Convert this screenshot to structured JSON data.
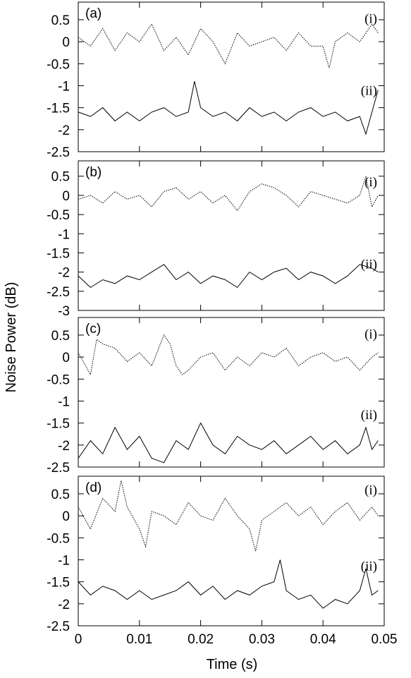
{
  "chart_data": {
    "type": "line",
    "xlabel": "Time (s)",
    "ylabel": "Noise Power (dB)",
    "xlim": [
      0,
      0.05
    ],
    "x_ticks": [
      "0",
      "0.01",
      "0.02",
      "0.03",
      "0.04",
      "0.05"
    ],
    "x_tick_values": [
      0,
      0.01,
      0.02,
      0.03,
      0.04,
      0.05
    ],
    "grid": false,
    "line_styles": {
      "(i)": "dotted",
      "(ii)": "solid"
    },
    "trace_color": "#000000",
    "panels": [
      {
        "label": "(a)",
        "ylim": [
          -2.5,
          0.9
        ],
        "y_ticks": [
          "0.5",
          "0",
          "-0.5",
          "-1",
          "-1.5",
          "-2",
          "-2.5"
        ],
        "y_tick_values": [
          0.5,
          0,
          -0.5,
          -1,
          -1.5,
          -2,
          -2.5
        ],
        "series": [
          {
            "name": "(i)",
            "style": "dotted",
            "x": [
              0,
              0.002,
              0.004,
              0.006,
              0.008,
              0.01,
              0.012,
              0.014,
              0.016,
              0.018,
              0.02,
              0.022,
              0.024,
              0.026,
              0.028,
              0.03,
              0.032,
              0.034,
              0.036,
              0.038,
              0.04,
              0.041,
              0.042,
              0.044,
              0.046,
              0.048,
              0.049
            ],
            "y": [
              0.1,
              -0.1,
              0.3,
              -0.2,
              0.2,
              0.0,
              0.4,
              -0.2,
              0.1,
              -0.3,
              0.3,
              0.0,
              -0.5,
              0.2,
              -0.1,
              0.0,
              0.1,
              -0.2,
              0.2,
              -0.1,
              -0.1,
              -0.6,
              0.0,
              0.2,
              0.0,
              0.4,
              0.2
            ]
          },
          {
            "name": "(ii)",
            "style": "solid",
            "x": [
              0,
              0.002,
              0.004,
              0.006,
              0.008,
              0.01,
              0.012,
              0.014,
              0.016,
              0.018,
              0.019,
              0.02,
              0.022,
              0.024,
              0.026,
              0.028,
              0.03,
              0.032,
              0.034,
              0.036,
              0.038,
              0.04,
              0.042,
              0.044,
              0.046,
              0.047,
              0.048,
              0.049
            ],
            "y": [
              -1.6,
              -1.7,
              -1.5,
              -1.8,
              -1.6,
              -1.8,
              -1.6,
              -1.5,
              -1.7,
              -1.6,
              -0.9,
              -1.5,
              -1.7,
              -1.6,
              -1.8,
              -1.5,
              -1.7,
              -1.6,
              -1.8,
              -1.6,
              -1.5,
              -1.7,
              -1.6,
              -1.8,
              -1.7,
              -2.1,
              -1.6,
              -1.1
            ]
          }
        ]
      },
      {
        "label": "(b)",
        "ylim": [
          -3,
          0.9
        ],
        "y_ticks": [
          "0.5",
          "0",
          "-0.5",
          "-1",
          "-1.5",
          "-2",
          "-2.5",
          "-3"
        ],
        "y_tick_values": [
          0.5,
          0,
          -0.5,
          -1,
          -1.5,
          -2,
          -2.5,
          -3
        ],
        "series": [
          {
            "name": "(i)",
            "style": "dotted",
            "x": [
              0,
              0.002,
              0.004,
              0.006,
              0.008,
              0.01,
              0.012,
              0.014,
              0.016,
              0.018,
              0.02,
              0.022,
              0.024,
              0.026,
              0.028,
              0.03,
              0.032,
              0.034,
              0.036,
              0.038,
              0.04,
              0.042,
              0.044,
              0.046,
              0.047,
              0.048,
              0.049
            ],
            "y": [
              -0.1,
              0.0,
              -0.2,
              0.1,
              -0.1,
              0.0,
              -0.3,
              0.1,
              0.2,
              -0.1,
              0.1,
              -0.2,
              0.0,
              -0.4,
              0.1,
              0.3,
              0.2,
              0.0,
              -0.3,
              0.1,
              0.0,
              -0.1,
              -0.2,
              0.0,
              0.5,
              -0.3,
              0.0
            ]
          },
          {
            "name": "(ii)",
            "style": "solid",
            "x": [
              0,
              0.002,
              0.004,
              0.006,
              0.008,
              0.01,
              0.012,
              0.014,
              0.016,
              0.018,
              0.02,
              0.022,
              0.024,
              0.026,
              0.028,
              0.03,
              0.032,
              0.034,
              0.036,
              0.038,
              0.04,
              0.042,
              0.044,
              0.046,
              0.048,
              0.049
            ],
            "y": [
              -2.1,
              -2.4,
              -2.2,
              -2.3,
              -2.1,
              -2.2,
              -2.0,
              -1.8,
              -2.2,
              -2.0,
              -2.3,
              -2.1,
              -2.2,
              -2.4,
              -2.0,
              -2.2,
              -2.0,
              -1.9,
              -2.2,
              -2.0,
              -2.1,
              -2.3,
              -2.1,
              -1.8,
              -1.9,
              -2.0
            ]
          }
        ]
      },
      {
        "label": "(c)",
        "ylim": [
          -2.5,
          0.9
        ],
        "y_ticks": [
          "0.5",
          "0",
          "-0.5",
          "-1",
          "-1.5",
          "-2",
          "-2.5"
        ],
        "y_tick_values": [
          0.5,
          0,
          -0.5,
          -1,
          -1.5,
          -2,
          -2.5
        ],
        "series": [
          {
            "name": "(i)",
            "style": "dotted",
            "x": [
              0,
              0.002,
              0.003,
              0.004,
              0.006,
              0.008,
              0.01,
              0.012,
              0.014,
              0.015,
              0.016,
              0.017,
              0.018,
              0.02,
              0.022,
              0.024,
              0.026,
              0.028,
              0.03,
              0.032,
              0.034,
              0.036,
              0.038,
              0.04,
              0.042,
              0.044,
              0.046,
              0.048,
              0.049
            ],
            "y": [
              0.1,
              -0.4,
              0.4,
              0.3,
              0.2,
              -0.1,
              0.1,
              -0.2,
              0.5,
              0.3,
              -0.2,
              -0.4,
              -0.3,
              0.0,
              0.1,
              -0.3,
              0.0,
              -0.2,
              0.1,
              0.0,
              0.2,
              -0.2,
              0.0,
              0.1,
              -0.1,
              0.0,
              -0.3,
              0.0,
              0.1
            ]
          },
          {
            "name": "(ii)",
            "style": "solid",
            "x": [
              0,
              0.002,
              0.004,
              0.006,
              0.008,
              0.01,
              0.012,
              0.014,
              0.016,
              0.018,
              0.02,
              0.022,
              0.024,
              0.026,
              0.028,
              0.03,
              0.032,
              0.034,
              0.036,
              0.038,
              0.04,
              0.042,
              0.044,
              0.046,
              0.047,
              0.048,
              0.049
            ],
            "y": [
              -2.3,
              -1.9,
              -2.2,
              -1.6,
              -2.1,
              -1.8,
              -2.3,
              -2.4,
              -1.9,
              -2.1,
              -1.5,
              -2.0,
              -2.2,
              -1.8,
              -2.0,
              -2.1,
              -1.9,
              -2.2,
              -2.0,
              -1.8,
              -2.1,
              -1.9,
              -2.2,
              -2.0,
              -1.6,
              -2.1,
              -1.9
            ]
          }
        ]
      },
      {
        "label": "(d)",
        "ylim": [
          -2.5,
          0.9
        ],
        "y_ticks": [
          "0.5",
          "0",
          "-0.5",
          "-1",
          "-1.5",
          "-2",
          "-2.5"
        ],
        "y_tick_values": [
          0.5,
          0,
          -0.5,
          -1,
          -1.5,
          -2,
          -2.5
        ],
        "series": [
          {
            "name": "(i)",
            "style": "dotted",
            "x": [
              0,
              0.002,
              0.004,
              0.006,
              0.007,
              0.008,
              0.01,
              0.011,
              0.012,
              0.014,
              0.016,
              0.018,
              0.02,
              0.022,
              0.024,
              0.026,
              0.028,
              0.029,
              0.03,
              0.032,
              0.034,
              0.036,
              0.038,
              0.04,
              0.042,
              0.044,
              0.046,
              0.048,
              0.049
            ],
            "y": [
              0.2,
              -0.3,
              0.4,
              0.1,
              0.8,
              0.2,
              -0.3,
              -0.7,
              0.1,
              0.0,
              -0.2,
              0.3,
              0.0,
              -0.1,
              0.4,
              0.0,
              -0.3,
              -0.8,
              -0.1,
              0.1,
              0.3,
              0.0,
              0.2,
              -0.2,
              0.1,
              0.3,
              -0.1,
              0.2,
              0.0
            ]
          },
          {
            "name": "(ii)",
            "style": "solid",
            "x": [
              0,
              0.002,
              0.004,
              0.006,
              0.008,
              0.01,
              0.012,
              0.014,
              0.016,
              0.018,
              0.02,
              0.022,
              0.024,
              0.026,
              0.028,
              0.03,
              0.032,
              0.033,
              0.034,
              0.036,
              0.038,
              0.04,
              0.042,
              0.044,
              0.046,
              0.047,
              0.048,
              0.049
            ],
            "y": [
              -1.5,
              -1.8,
              -1.6,
              -1.7,
              -1.9,
              -1.7,
              -1.9,
              -1.8,
              -1.7,
              -1.5,
              -1.8,
              -1.6,
              -1.9,
              -1.7,
              -1.8,
              -1.6,
              -1.5,
              -1.0,
              -1.7,
              -1.9,
              -1.8,
              -2.1,
              -1.9,
              -2.0,
              -1.7,
              -1.2,
              -1.8,
              -1.7
            ]
          }
        ]
      }
    ]
  }
}
